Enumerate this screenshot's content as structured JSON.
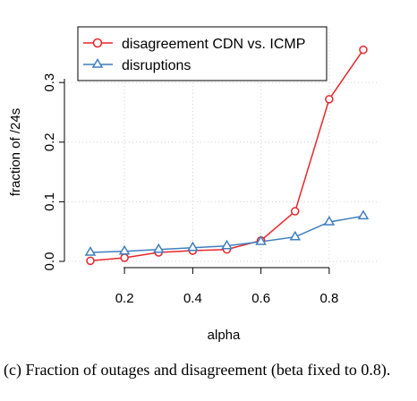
{
  "chart_data": {
    "type": "line",
    "xlabel": "alpha",
    "ylabel": "fraction of /24s",
    "x": [
      0.1,
      0.2,
      0.3,
      0.4,
      0.5,
      0.6,
      0.7,
      0.8,
      0.9
    ],
    "xticks": [
      "0.2",
      "0.4",
      "0.6",
      "0.8"
    ],
    "yticks": [
      "0.0",
      "0.1",
      "0.2",
      "0.3"
    ],
    "xlim": [
      0.1,
      0.9
    ],
    "ylim": [
      0.0,
      0.35
    ],
    "grid": true,
    "legend_position": "top-left",
    "series": [
      {
        "name": "disagreement CDN vs. ICMP",
        "color": "#e8262b",
        "marker": "circle",
        "values": [
          0.001,
          0.006,
          0.015,
          0.018,
          0.02,
          0.035,
          0.084,
          0.272,
          0.355
        ]
      },
      {
        "name": "disruptions",
        "color": "#3f7fbf",
        "marker": "triangle",
        "values": [
          0.015,
          0.017,
          0.02,
          0.023,
          0.026,
          0.033,
          0.041,
          0.066,
          0.076
        ]
      }
    ]
  },
  "caption": "(c) Fraction of outages and disagreement (beta fixed to 0.8)."
}
